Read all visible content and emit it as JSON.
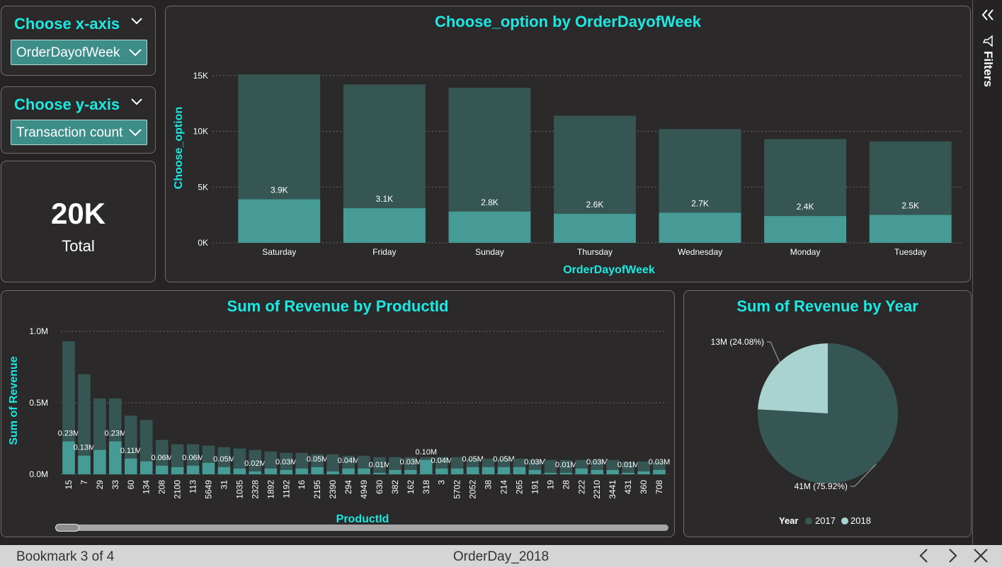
{
  "slicer_x": {
    "title": "Choose x-axis",
    "value": "OrderDayofWeek"
  },
  "slicer_y": {
    "title": "Choose y-axis",
    "value": "Transaction count"
  },
  "card": {
    "value": "20K",
    "label": "Total"
  },
  "filters_label": "Filters",
  "footer": {
    "bookmark": "Bookmark 3 of 4",
    "name": "OrderDay_2018"
  },
  "colors": {
    "accent": "#1de9e2",
    "dark_bar": "#365654",
    "light_bar": "#469b96",
    "pie_2017": "#365654",
    "pie_2018": "#a9d3d1"
  },
  "chart_data": [
    {
      "type": "bar",
      "title": "Choose_option by OrderDayofWeek",
      "xlabel": "OrderDayofWeek",
      "ylabel": "Choose_option",
      "categories": [
        "Saturday",
        "Friday",
        "Sunday",
        "Thursday",
        "Wednesday",
        "Monday",
        "Tuesday"
      ],
      "series": [
        {
          "values": [
            15100,
            14200,
            13900,
            11400,
            10200,
            9300,
            9100
          ]
        },
        {
          "values": [
            3900,
            3100,
            2800,
            2600,
            2700,
            2400,
            2500
          ]
        }
      ],
      "data_labels": [
        "3.9K",
        "3.1K",
        "2.8K",
        "2.6K",
        "2.7K",
        "2.4K",
        "2.5K"
      ],
      "yticks": [
        "0K",
        "5K",
        "10K",
        "15K"
      ],
      "ylim": [
        0,
        16000
      ],
      "grid": true
    },
    {
      "type": "bar",
      "title": "Sum of Revenue by ProductId",
      "xlabel": "ProductId",
      "ylabel": "Sum of Revenue",
      "categories": [
        "15",
        "7",
        "29",
        "33",
        "60",
        "134",
        "208",
        "2100",
        "113",
        "5649",
        "31",
        "1035",
        "2328",
        "1892",
        "1192",
        "16",
        "2195",
        "2390",
        "294",
        "4949",
        "630",
        "382",
        "162",
        "318",
        "3",
        "5702",
        "2052",
        "38",
        "214",
        "265",
        "191",
        "19",
        "28",
        "222",
        "2210",
        "3441",
        "431",
        "360",
        "708"
      ],
      "series": [
        {
          "values": [
            0.93,
            0.7,
            0.53,
            0.53,
            0.41,
            0.38,
            0.24,
            0.21,
            0.21,
            0.2,
            0.19,
            0.18,
            0.17,
            0.16,
            0.15,
            0.15,
            0.14,
            0.14,
            0.13,
            0.13,
            0.12,
            0.12,
            0.12,
            0.12,
            0.12,
            0.12,
            0.11,
            0.11,
            0.11,
            0.11,
            0.1,
            0.1,
            0.1,
            0.1,
            0.1,
            0.1,
            0.09,
            0.09,
            0.09
          ]
        },
        {
          "values": [
            0.23,
            0.13,
            0.17,
            0.23,
            0.11,
            0.09,
            0.06,
            0.05,
            0.06,
            0.08,
            0.05,
            0.04,
            0.02,
            0.04,
            0.03,
            0.04,
            0.05,
            0.02,
            0.04,
            0.04,
            0.01,
            0.03,
            0.03,
            0.1,
            0.04,
            0.04,
            0.05,
            0.05,
            0.05,
            0.05,
            0.03,
            0.01,
            0.01,
            0.04,
            0.03,
            0.03,
            0.01,
            0.02,
            0.03
          ]
        }
      ],
      "data_labels": [
        "0.23M",
        "0.13M",
        "",
        "0.23M",
        "0.11M",
        "",
        "0.06M",
        "",
        "0.06M",
        "",
        "0.05M",
        "",
        "0.02M",
        "",
        "0.03M",
        "",
        "0.05M",
        "",
        "0.04M",
        "",
        "0.01M",
        "",
        "0.03M",
        "0.10M",
        "0.04M",
        "",
        "0.05M",
        "",
        "0.05M",
        "",
        "0.03M",
        "",
        "0.01M",
        "",
        "0.03M",
        "",
        "0.01M",
        "",
        "0.03M"
      ],
      "yticks": [
        "0.0M",
        "0.5M",
        "1.0M"
      ],
      "ylim": [
        0,
        1.0
      ],
      "grid": true
    },
    {
      "type": "pie",
      "title": "Sum of Revenue by Year",
      "legend_title": "Year",
      "slices": [
        {
          "name": "2017",
          "value": 75.92,
          "label": "41M (75.92%)"
        },
        {
          "name": "2018",
          "value": 24.08,
          "label": "13M (24.08%)"
        }
      ]
    }
  ]
}
